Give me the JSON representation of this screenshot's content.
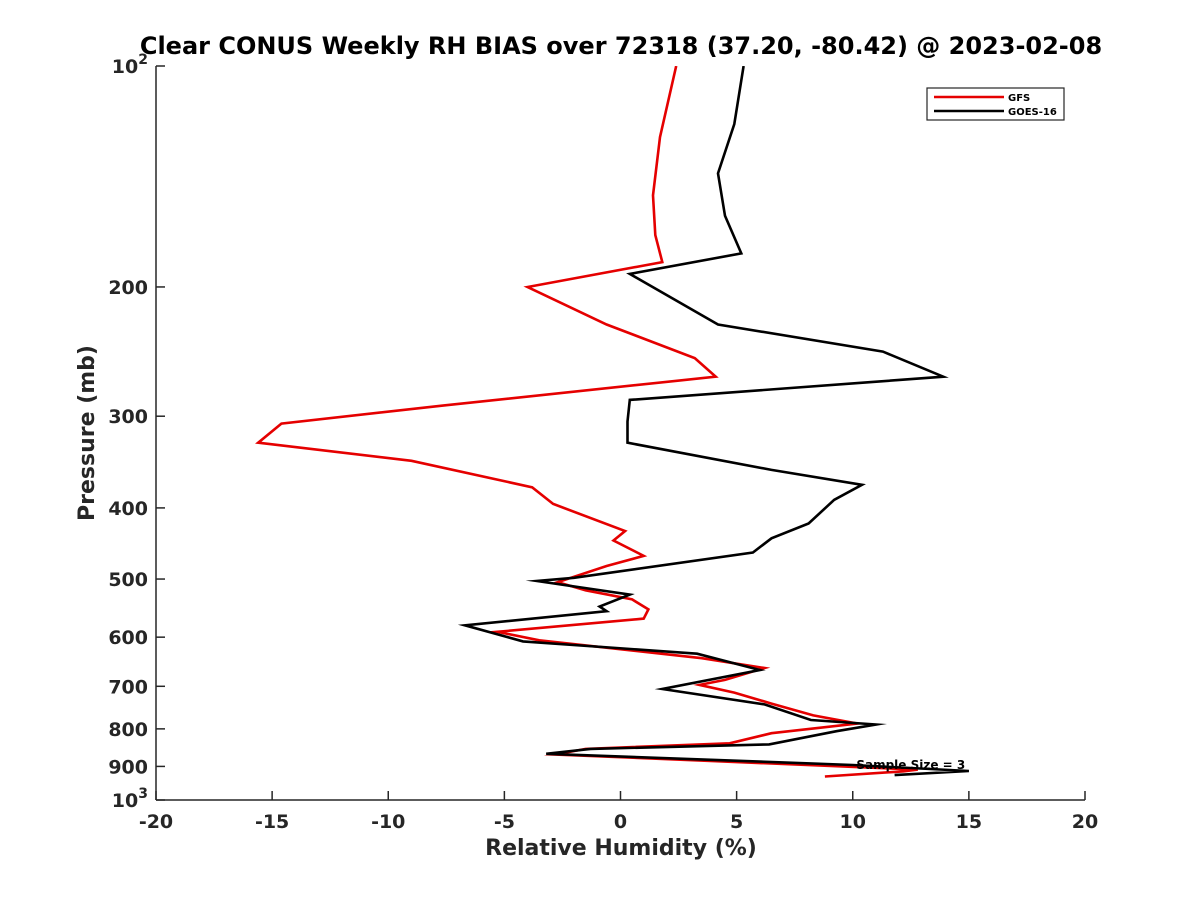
{
  "chart_data": {
    "type": "line",
    "title": "Clear CONUS Weekly RH BIAS over 72318 (37.20, -80.42) @ 2023-02-08",
    "xlabel": "Relative Humidity (%)",
    "ylabel": "Pressure (mb)",
    "xlim": [
      -20,
      20
    ],
    "ylim": [
      100,
      1000
    ],
    "y_scale": "log",
    "y_reversed": true,
    "grid": false,
    "legend_position": "top-right",
    "xticks": [
      -20,
      -15,
      -10,
      -5,
      0,
      5,
      10,
      15,
      20
    ],
    "yticks": [
      100,
      200,
      300,
      400,
      500,
      600,
      700,
      800,
      900,
      1000
    ],
    "ytick_labels": {
      "100": {
        "base": "10",
        "exp": "2"
      },
      "200": "200",
      "300": "300",
      "400": "400",
      "500": "500",
      "600": "600",
      "700": "700",
      "800": "800",
      "900": "900",
      "1000": {
        "base": "10",
        "exp": "3"
      }
    },
    "annotation": {
      "text": "Sample Size = 3",
      "x": 12.5,
      "y": 896
    },
    "series": [
      {
        "name": "GFS",
        "color": "#e50000",
        "points": [
          [
            2.4,
            100
          ],
          [
            1.7,
            125
          ],
          [
            1.4,
            150
          ],
          [
            1.5,
            170
          ],
          [
            1.8,
            185
          ],
          [
            -4.0,
            200
          ],
          [
            -0.6,
            225
          ],
          [
            3.2,
            250
          ],
          [
            4.1,
            265
          ],
          [
            -7.6,
            290
          ],
          [
            -14.6,
            307
          ],
          [
            -15.6,
            326
          ],
          [
            -9.0,
            345
          ],
          [
            -3.8,
            375
          ],
          [
            -2.9,
            395
          ],
          [
            0.2,
            430
          ],
          [
            -0.3,
            443
          ],
          [
            1.0,
            465
          ],
          [
            -0.6,
            480
          ],
          [
            -2.7,
            505
          ],
          [
            -1.5,
            518
          ],
          [
            0.5,
            533
          ],
          [
            1.2,
            550
          ],
          [
            1.0,
            566
          ],
          [
            -5.3,
            590
          ],
          [
            -3.5,
            606
          ],
          [
            3.5,
            641
          ],
          [
            6.2,
            661
          ],
          [
            4.5,
            686
          ],
          [
            3.4,
            697
          ],
          [
            4.9,
            714
          ],
          [
            6.5,
            739
          ],
          [
            8.3,
            767
          ],
          [
            10.2,
            787
          ],
          [
            6.5,
            811
          ],
          [
            4.7,
            837
          ],
          [
            -1.5,
            852
          ],
          [
            -2.8,
            867
          ],
          [
            12.8,
            909
          ],
          [
            12.2,
            914
          ],
          [
            8.8,
            929
          ]
        ]
      },
      {
        "name": "GOES-16",
        "color": "#000000",
        "points": [
          [
            5.3,
            100
          ],
          [
            4.9,
            120
          ],
          [
            4.2,
            140
          ],
          [
            4.5,
            160
          ],
          [
            5.2,
            180
          ],
          [
            0.4,
            192
          ],
          [
            4.2,
            225
          ],
          [
            11.3,
            245
          ],
          [
            13.9,
            265
          ],
          [
            0.4,
            285
          ],
          [
            0.3,
            305
          ],
          [
            0.3,
            326
          ],
          [
            6.5,
            355
          ],
          [
            10.4,
            372
          ],
          [
            9.2,
            390
          ],
          [
            8.1,
            420
          ],
          [
            6.5,
            440
          ],
          [
            5.7,
            460
          ],
          [
            -2.0,
            498
          ],
          [
            -3.6,
            503
          ],
          [
            0.4,
            525
          ],
          [
            -0.9,
            545
          ],
          [
            -0.6,
            553
          ],
          [
            -6.7,
            578
          ],
          [
            -4.2,
            608
          ],
          [
            3.3,
            632
          ],
          [
            6.0,
            665
          ],
          [
            1.8,
            706
          ],
          [
            6.2,
            741
          ],
          [
            8.2,
            778
          ],
          [
            11.0,
            789
          ],
          [
            9.3,
            806
          ],
          [
            6.4,
            840
          ],
          [
            -1.3,
            852
          ],
          [
            -3.2,
            865
          ],
          [
            10.0,
            896
          ],
          [
            15.0,
            913
          ],
          [
            11.8,
            925
          ]
        ]
      }
    ]
  }
}
